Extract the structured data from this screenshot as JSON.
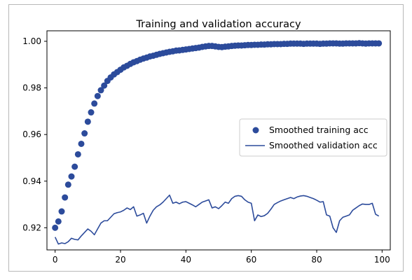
{
  "chart_data": {
    "type": "line",
    "title": "Training and validation accuracy",
    "xlabel": "",
    "ylabel": "",
    "xlim": [
      -2.5,
      102.5
    ],
    "ylim": [
      0.9105,
      1.0045
    ],
    "xticks": [
      0,
      20,
      40,
      60,
      80,
      100
    ],
    "yticks": [
      0.92,
      0.94,
      0.96,
      0.98,
      1.0
    ],
    "ytick_labels": [
      "0.92",
      "0.94",
      "0.96",
      "0.98",
      "1.00"
    ],
    "grid": false,
    "legend": {
      "placement": "center-right"
    },
    "series": [
      {
        "name": "Smoothed training acc",
        "style": "dots",
        "color": "#2c4b9b",
        "x": [
          0,
          1,
          2,
          3,
          4,
          5,
          6,
          7,
          8,
          9,
          10,
          11,
          12,
          13,
          14,
          15,
          16,
          17,
          18,
          19,
          20,
          21,
          22,
          23,
          24,
          25,
          26,
          27,
          28,
          29,
          30,
          31,
          32,
          33,
          34,
          35,
          36,
          37,
          38,
          39,
          40,
          41,
          42,
          43,
          44,
          45,
          46,
          47,
          48,
          49,
          50,
          51,
          52,
          53,
          54,
          55,
          56,
          57,
          58,
          59,
          60,
          61,
          62,
          63,
          64,
          65,
          66,
          67,
          68,
          69,
          70,
          71,
          72,
          73,
          74,
          75,
          76,
          77,
          78,
          79,
          80,
          81,
          82,
          83,
          84,
          85,
          86,
          87,
          88,
          89,
          90,
          91,
          92,
          93,
          94,
          95,
          96,
          97,
          98,
          99
        ],
        "values": [
          0.92,
          0.9227,
          0.927,
          0.933,
          0.9385,
          0.942,
          0.9462,
          0.9515,
          0.956,
          0.9605,
          0.9655,
          0.9695,
          0.9733,
          0.9765,
          0.979,
          0.981,
          0.983,
          0.9845,
          0.9858,
          0.9868,
          0.9878,
          0.9888,
          0.9895,
          0.9903,
          0.991,
          0.9915,
          0.9921,
          0.9926,
          0.993,
          0.9935,
          0.9938,
          0.9942,
          0.9946,
          0.9949,
          0.9952,
          0.9955,
          0.9957,
          0.996,
          0.9961,
          0.9963,
          0.9965,
          0.9967,
          0.9969,
          0.9971,
          0.9973,
          0.9976,
          0.9978,
          0.998,
          0.998,
          0.9978,
          0.9976,
          0.9975,
          0.9977,
          0.9978,
          0.998,
          0.9981,
          0.9982,
          0.9982,
          0.9983,
          0.9984,
          0.9984,
          0.9985,
          0.9985,
          0.9986,
          0.9986,
          0.9987,
          0.9987,
          0.9988,
          0.9988,
          0.9988,
          0.9989,
          0.9989,
          0.999,
          0.999,
          0.999,
          0.999,
          0.9989,
          0.999,
          0.999,
          0.999,
          0.999,
          0.9989,
          0.999,
          0.999,
          0.9991,
          0.9991,
          0.9991,
          0.999,
          0.999,
          0.9991,
          0.9991,
          0.9991,
          0.9991,
          0.9992,
          0.9991,
          0.999,
          0.9991,
          0.9991,
          0.9991,
          0.9991
        ]
      },
      {
        "name": "Smoothed validation acc",
        "style": "line",
        "color": "#2c4b9b",
        "x": [
          0,
          1,
          2,
          3,
          4,
          5,
          6,
          7,
          8,
          9,
          10,
          11,
          12,
          13,
          14,
          15,
          16,
          17,
          18,
          19,
          20,
          21,
          22,
          23,
          24,
          25,
          26,
          27,
          28,
          29,
          30,
          31,
          32,
          33,
          34,
          35,
          36,
          37,
          38,
          39,
          40,
          41,
          42,
          43,
          44,
          45,
          46,
          47,
          48,
          49,
          50,
          51,
          52,
          53,
          54,
          55,
          56,
          57,
          58,
          59,
          60,
          61,
          62,
          63,
          64,
          65,
          66,
          67,
          68,
          69,
          70,
          71,
          72,
          73,
          74,
          75,
          76,
          77,
          78,
          79,
          80,
          81,
          82,
          83,
          84,
          85,
          86,
          87,
          88,
          89,
          90,
          91,
          92,
          93,
          94,
          95,
          96,
          97,
          98,
          99
        ],
        "values": [
          0.916,
          0.913,
          0.9135,
          0.9132,
          0.914,
          0.9155,
          0.915,
          0.9148,
          0.9165,
          0.918,
          0.9195,
          0.9185,
          0.917,
          0.9195,
          0.922,
          0.923,
          0.923,
          0.9245,
          0.926,
          0.9265,
          0.9268,
          0.9275,
          0.9285,
          0.9278,
          0.929,
          0.925,
          0.9255,
          0.9262,
          0.922,
          0.925,
          0.9275,
          0.929,
          0.9298,
          0.931,
          0.9325,
          0.934,
          0.9305,
          0.931,
          0.9303,
          0.931,
          0.9312,
          0.9305,
          0.9298,
          0.929,
          0.93,
          0.931,
          0.9315,
          0.932,
          0.9285,
          0.929,
          0.9282,
          0.9295,
          0.931,
          0.9305,
          0.9325,
          0.9335,
          0.9338,
          0.9335,
          0.932,
          0.931,
          0.9305,
          0.923,
          0.9255,
          0.9248,
          0.9252,
          0.9262,
          0.928,
          0.93,
          0.9308,
          0.9315,
          0.932,
          0.9325,
          0.933,
          0.9325,
          0.9332,
          0.9336,
          0.9338,
          0.9335,
          0.933,
          0.9325,
          0.9318,
          0.931,
          0.9312,
          0.9255,
          0.925,
          0.92,
          0.918,
          0.923,
          0.9245,
          0.925,
          0.9255,
          0.9275,
          0.9285,
          0.9295,
          0.9302,
          0.93,
          0.93,
          0.9305,
          0.9258,
          0.925
        ]
      }
    ]
  }
}
